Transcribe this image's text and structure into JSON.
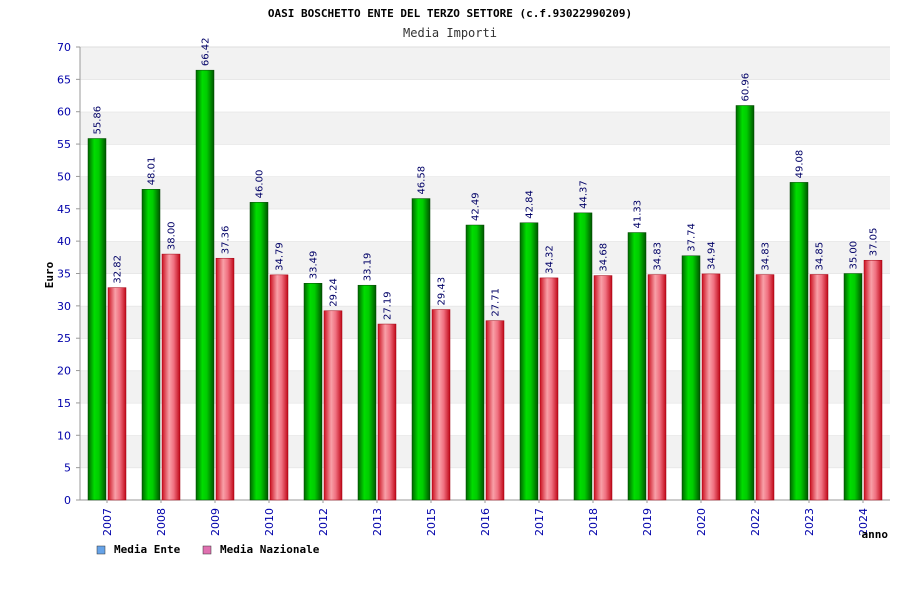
{
  "chart_data": {
    "type": "bar",
    "title": "OASI BOSCHETTO ENTE DEL TERZO SETTORE (c.f.93022990209)",
    "subtitle": "Media Importi",
    "xlabel": "anno",
    "ylabel": "Euro",
    "ylim": [
      0,
      70
    ],
    "ytick_step": 5,
    "grid": "horizontal bands",
    "legend_position": "bottom-left",
    "categories": [
      "2007",
      "2008",
      "2009",
      "2010",
      "2012",
      "2013",
      "2015",
      "2016",
      "2017",
      "2018",
      "2019",
      "2020",
      "2022",
      "2023",
      "2024"
    ],
    "series": [
      {
        "name": "Media Ente",
        "legend_color": "#66a3e8",
        "bar_color": "#00c000",
        "labels": [
          "55.86",
          "48.01",
          "66.42",
          "46.00",
          "33.49",
          "33.19",
          "46.58",
          "42.49",
          "42.84",
          "44.37",
          "41.33",
          "37.74",
          "60.96",
          "49.08",
          "35.00"
        ],
        "values": [
          55.86,
          48.01,
          66.42,
          46.0,
          33.49,
          33.19,
          46.58,
          42.49,
          42.84,
          44.37,
          41.33,
          37.74,
          60.96,
          49.08,
          35.0
        ]
      },
      {
        "name": "Media Nazionale",
        "legend_color": "#e070b0",
        "bar_color": "#e83040",
        "labels": [
          "32.82",
          "38.00",
          "37.36",
          "34.79",
          "29.24",
          "27.19",
          "29.43",
          "27.71",
          "34.32",
          "34.68",
          "34.83",
          "34.94",
          "34.83",
          "34.85",
          "37.05"
        ],
        "values": [
          32.82,
          38.0,
          37.36,
          34.79,
          29.24,
          27.19,
          29.43,
          27.71,
          34.32,
          34.68,
          34.83,
          34.94,
          34.83,
          34.85,
          37.05
        ]
      }
    ]
  }
}
